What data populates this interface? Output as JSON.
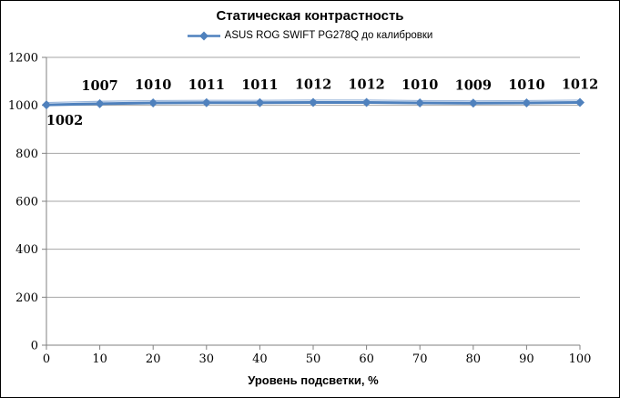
{
  "chart_data": {
    "type": "line",
    "title": "Статическая контрастность",
    "xlabel": "Уровень подсветки, %",
    "ylabel": "",
    "x": [
      0,
      10,
      20,
      30,
      40,
      50,
      60,
      70,
      80,
      90,
      100
    ],
    "series": [
      {
        "name": "ASUS ROG SWIFT PG278Q до калибровки",
        "values": [
          1002,
          1007,
          1010,
          1011,
          1011,
          1012,
          1012,
          1010,
          1009,
          1010,
          1012
        ]
      }
    ],
    "data_labels_visible": true,
    "ylim": [
      0,
      1200
    ],
    "yticks": [
      0,
      200,
      400,
      600,
      800,
      1000,
      1200
    ],
    "grid": "horizontal",
    "legend_position": "top-center",
    "marker": "diamond",
    "colors": {
      "line": "#4F81BD",
      "line_highlight": "#9db8dc",
      "grid": "#a6a6a6",
      "axis": "#808080",
      "text": "#000000",
      "border": "#000000",
      "background": "#ffffff"
    }
  }
}
